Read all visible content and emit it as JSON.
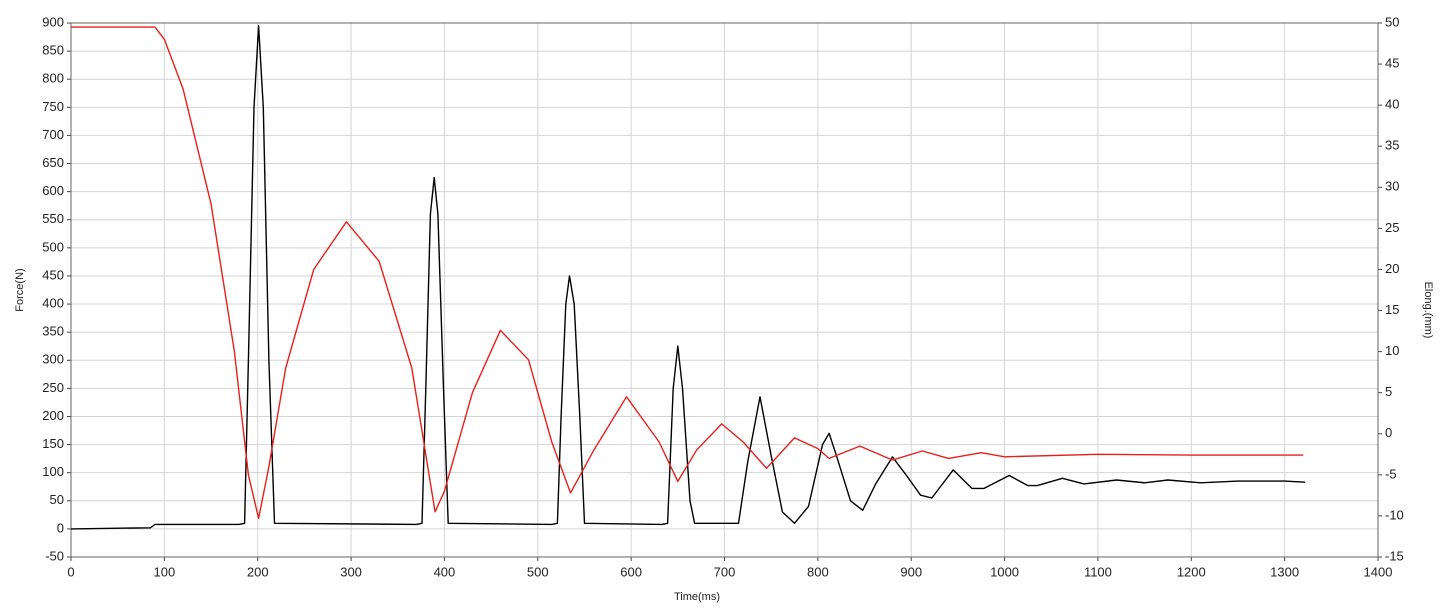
{
  "chart_data": {
    "type": "line",
    "x_label": "Time(ms)",
    "y_label": "Force(N)",
    "y2_label": "Elong.(mm)",
    "xlim": [
      0,
      1400
    ],
    "xticks": [
      0,
      100,
      200,
      300,
      400,
      500,
      600,
      700,
      800,
      900,
      1000,
      1100,
      1200,
      1300,
      1400
    ],
    "ylim": [
      -50,
      900
    ],
    "yticks": [
      -50,
      0,
      50,
      100,
      150,
      200,
      250,
      300,
      350,
      400,
      450,
      500,
      550,
      600,
      650,
      700,
      750,
      800,
      850,
      900
    ],
    "y2lim": [
      -15,
      50
    ],
    "y2ticks": [
      -15,
      -10,
      -5,
      0,
      5,
      10,
      15,
      20,
      25,
      30,
      35,
      40,
      45,
      50
    ],
    "grid": true,
    "series": [
      {
        "color": "#000000",
        "axis": "y",
        "x": [
          0,
          85,
          90,
          180,
          186,
          190,
          196,
          201,
          206,
          212,
          218,
          370,
          376,
          380,
          385,
          389,
          393,
          399,
          404,
          515,
          521,
          525,
          530,
          534,
          539,
          545,
          550,
          633,
          639,
          645,
          650,
          655,
          663,
          668,
          715,
          725,
          738,
          750,
          762,
          775,
          790,
          805,
          812,
          820,
          835,
          848,
          862,
          880,
          895,
          910,
          922,
          945,
          965,
          978,
          1005,
          1025,
          1035,
          1062,
          1085,
          1120,
          1150,
          1175,
          1210,
          1250,
          1300,
          1322
        ],
        "values": [
          0,
          2,
          8,
          8,
          10,
          300,
          750,
          895,
          750,
          300,
          10,
          8,
          10,
          250,
          560,
          625,
          560,
          250,
          10,
          8,
          10,
          200,
          400,
          450,
          400,
          200,
          10,
          8,
          10,
          250,
          325,
          250,
          50,
          10,
          10,
          120,
          235,
          130,
          30,
          10,
          40,
          150,
          170,
          130,
          50,
          33,
          80,
          128,
          95,
          60,
          55,
          105,
          72,
          72,
          95,
          77,
          77,
          90,
          80,
          87,
          82,
          87,
          82,
          85,
          85,
          83
        ]
      },
      {
        "color": "#e8201c",
        "axis": "y2",
        "x": [
          0,
          90,
          100,
          120,
          150,
          175,
          190,
          201,
          212,
          230,
          260,
          295,
          330,
          365,
          385,
          390,
          400,
          430,
          460,
          490,
          515,
          535,
          560,
          595,
          630,
          650,
          670,
          697,
          720,
          745,
          775,
          800,
          812,
          845,
          880,
          912,
          940,
          975,
          1000,
          1100,
          1200,
          1320
        ],
        "values": [
          49.5,
          49.5,
          48,
          42,
          28,
          10,
          -5,
          -10.3,
          -4,
          8,
          20,
          25.8,
          21,
          8,
          -6,
          -9.5,
          -7,
          5,
          12.6,
          9,
          -1,
          -7.2,
          -2,
          4.5,
          -1,
          -5.8,
          -2,
          1.2,
          -1,
          -4.2,
          -0.5,
          -1.8,
          -3,
          -1.5,
          -3.2,
          -2.1,
          -3,
          -2.3,
          -2.8,
          -2.5,
          -2.6,
          -2.6
        ]
      }
    ]
  }
}
